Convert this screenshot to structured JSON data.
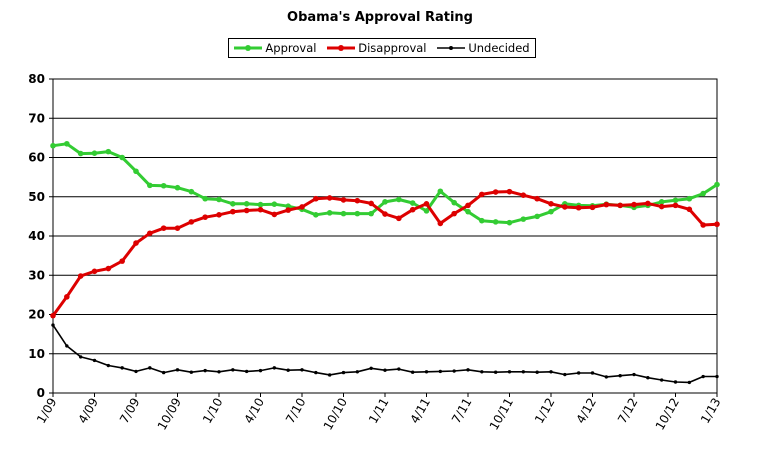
{
  "chart_data": {
    "type": "line",
    "title": "Obama's Approval Rating",
    "xlabel": "",
    "ylabel": "",
    "ylim": [
      0,
      80
    ],
    "yticks": [
      0,
      10,
      20,
      30,
      40,
      50,
      60,
      70,
      80
    ],
    "grid": "horizontal",
    "legend_position": "top-center",
    "x_tick_labels": [
      "1/09",
      "4/09",
      "7/09",
      "10/09",
      "1/10",
      "4/10",
      "7/10",
      "10/10",
      "1/11",
      "4/11",
      "7/11",
      "10/11",
      "1/12",
      "4/12",
      "7/12",
      "10/12",
      "1/13"
    ],
    "series": [
      {
        "name": "Approval",
        "color": "#33cc33",
        "values": [
          63.0,
          63.5,
          61.0,
          61.1,
          61.5,
          60.0,
          56.5,
          52.9,
          52.8,
          52.3,
          51.3,
          49.5,
          49.3,
          48.2,
          48.2,
          48.0,
          48.1,
          47.6,
          46.8,
          45.4,
          45.9,
          45.7,
          45.7,
          45.7,
          48.7,
          49.3,
          48.4,
          46.4,
          51.4,
          48.5,
          46.2,
          43.9,
          43.6,
          43.4,
          44.3,
          45.0,
          46.2,
          48.2,
          47.8,
          47.7,
          48.1,
          47.8,
          47.3,
          47.8,
          48.7,
          49.1,
          49.5,
          50.8,
          53.1
        ]
      },
      {
        "name": "Disapproval",
        "color": "#dd0000",
        "values": [
          19.7,
          24.5,
          29.8,
          31.0,
          31.7,
          33.6,
          38.2,
          40.7,
          42.0,
          42.0,
          43.6,
          44.8,
          45.4,
          46.2,
          46.5,
          46.7,
          45.5,
          46.6,
          47.4,
          49.5,
          49.7,
          49.2,
          49.0,
          48.3,
          45.6,
          44.5,
          46.7,
          48.2,
          43.2,
          45.7,
          47.8,
          50.6,
          51.2,
          51.3,
          50.4,
          49.5,
          48.2,
          47.4,
          47.2,
          47.3,
          48.0,
          47.8,
          48.0,
          48.3,
          47.5,
          47.8,
          46.8,
          42.8,
          43.0
        ]
      },
      {
        "name": "Undecided",
        "color": "#000000",
        "values": [
          17.3,
          12.0,
          9.2,
          8.3,
          7.0,
          6.4,
          5.5,
          6.4,
          5.2,
          5.9,
          5.3,
          5.7,
          5.4,
          5.9,
          5.5,
          5.7,
          6.4,
          5.8,
          5.9,
          5.2,
          4.6,
          5.2,
          5.4,
          6.3,
          5.8,
          6.1,
          5.3,
          5.4,
          5.5,
          5.6,
          5.9,
          5.4,
          5.3,
          5.4,
          5.4,
          5.3,
          5.4,
          4.7,
          5.1,
          5.1,
          4.1,
          4.4,
          4.7,
          3.9,
          3.3,
          2.8,
          2.7,
          4.2,
          4.2
        ]
      }
    ]
  }
}
